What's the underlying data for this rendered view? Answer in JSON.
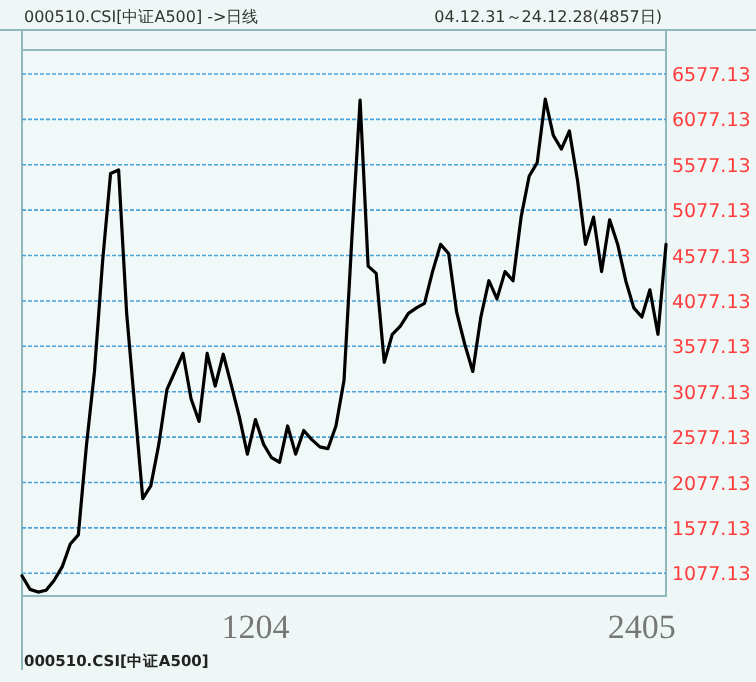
{
  "chart_data": {
    "type": "line",
    "title": "000510.CSI[中证A500] ->日线",
    "subtitle": "04.12.31～24.12.28(4857日)",
    "annotations": [
      "000510.CSI[中证A500]"
    ],
    "categories": [
      null,
      null,
      null,
      null,
      null,
      null,
      null,
      null,
      null,
      null,
      null,
      null,
      null,
      null,
      null,
      null,
      null,
      null,
      null,
      null,
      null,
      null,
      null,
      null,
      null,
      null,
      null,
      null,
      null,
      "1204",
      null,
      null,
      null,
      null,
      null,
      null,
      null,
      null,
      null,
      null,
      null,
      null,
      null,
      null,
      null,
      null,
      null,
      null,
      null,
      null,
      null,
      null,
      null,
      null,
      null,
      null,
      null,
      null,
      null,
      null,
      null,
      null,
      null,
      null,
      null,
      null,
      null,
      null,
      null,
      null,
      null,
      null,
      null,
      null,
      null,
      null,
      null,
      "2405",
      null,
      null,
      null
    ],
    "series": [
      {
        "color": "#000000",
        "values": [
          1050,
          900,
          870,
          890,
          1000,
          1150,
          1400,
          1500,
          2480,
          3300,
          4500,
          5480,
          5520,
          3940,
          2920,
          1900,
          2040,
          2500,
          3100,
          3300,
          3500,
          3000,
          2750,
          3500,
          3140,
          3490,
          3150,
          2800,
          2390,
          2770,
          2500,
          2350,
          2300,
          2700,
          2390,
          2650,
          2550,
          2470,
          2450,
          2700,
          3200,
          4800,
          6290,
          4460,
          4380,
          3400,
          3710,
          3800,
          3940,
          4000,
          4050,
          4400,
          4700,
          4600,
          3950,
          3600,
          3300,
          3900,
          4300,
          4100,
          4400,
          4300,
          5000,
          5450,
          5600,
          6300,
          5900,
          5750,
          5950,
          5410,
          4700,
          5000,
          4400,
          4970,
          4700,
          4300,
          4000,
          3900,
          4200,
          3710,
          4700
        ]
      }
    ],
    "ylim": [
      827,
      6841
    ],
    "yticks": [
      1077.13,
      1577.13,
      2077.13,
      2577.13,
      3077.13,
      3577.13,
      4077.13,
      4577.13,
      5077.13,
      5577.13,
      6077.13,
      6577.13
    ],
    "grid": "y",
    "line_style": "solid"
  }
}
